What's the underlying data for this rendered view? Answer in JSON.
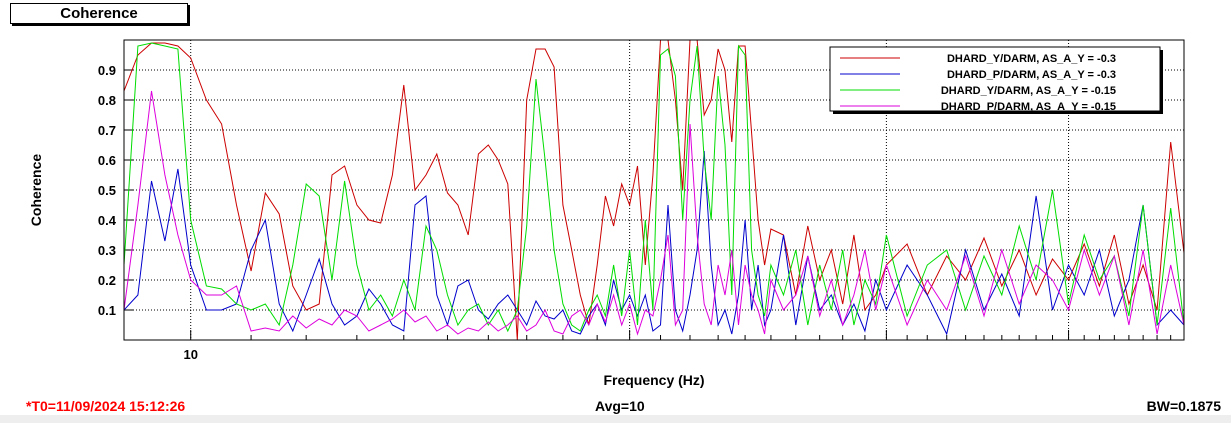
{
  "window": {
    "title_tab": "Coherence",
    "t0": "*T0=11/09/2024 15:12:26",
    "avg": "Avg=10",
    "bw": "BW=0.1875"
  },
  "colors": {
    "red": "#cc0000",
    "blue": "#0000cc",
    "green": "#00dd00",
    "magenta": "#dd00dd",
    "footer_red": "#ff0000"
  },
  "chart_data": {
    "type": "line",
    "title": "",
    "xlabel": "Frequency (Hz)",
    "ylabel": "Coherence",
    "xscale": "log",
    "xlim": [
      9.0,
      48.0
    ],
    "ylim": [
      0.0,
      1.0
    ],
    "yticks": [
      0.1,
      0.2,
      0.3,
      0.4,
      0.5,
      0.6,
      0.7,
      0.8,
      0.9
    ],
    "xtick_labels": [
      {
        "value": 10,
        "label": "10"
      }
    ],
    "grid": true,
    "legend_position": "top-right",
    "series": [
      {
        "name": "DHARD_Y/DARM, AS_A_Y = -0.3",
        "color": "#cc0000",
        "x": [
          9.0,
          9.2,
          9.4,
          9.6,
          9.8,
          10.0,
          10.25,
          10.5,
          10.75,
          11.0,
          11.25,
          11.5,
          11.75,
          12.0,
          12.25,
          12.5,
          12.75,
          13.0,
          13.25,
          13.5,
          13.75,
          14.0,
          14.25,
          14.5,
          14.75,
          15.0,
          15.25,
          15.5,
          15.75,
          16.0,
          16.25,
          16.5,
          16.75,
          17.0,
          17.25,
          17.5,
          17.75,
          18.0,
          18.25,
          18.5,
          18.75,
          19.0,
          19.25,
          19.5,
          19.75,
          20.0,
          20.25,
          20.5,
          20.75,
          21.0,
          21.25,
          21.5,
          21.75,
          22.0,
          22.25,
          22.5,
          22.75,
          23.0,
          23.25,
          23.5,
          23.75,
          24.0,
          24.25,
          24.5,
          24.75,
          25.0,
          25.5,
          26.0,
          26.5,
          27.0,
          27.5,
          28.0,
          28.5,
          29.0,
          29.5,
          30.0,
          31.0,
          32.0,
          33.0,
          34.0,
          35.0,
          36.0,
          37.0,
          38.0,
          39.0,
          40.0,
          41.0,
          42.0,
          43.0,
          44.0,
          45.0,
          46.0,
          47.0,
          48.0
        ],
        "y": [
          0.83,
          0.95,
          0.99,
          0.99,
          0.98,
          0.94,
          0.8,
          0.72,
          0.45,
          0.23,
          0.49,
          0.42,
          0.18,
          0.1,
          0.12,
          0.55,
          0.58,
          0.45,
          0.4,
          0.39,
          0.55,
          0.85,
          0.5,
          0.55,
          0.62,
          0.49,
          0.45,
          0.35,
          0.62,
          0.65,
          0.6,
          0.52,
          0.0,
          0.8,
          0.97,
          0.97,
          0.91,
          0.45,
          0.3,
          0.15,
          0.05,
          0.25,
          0.48,
          0.38,
          0.52,
          0.45,
          0.58,
          0.25,
          0.55,
          1.0,
          1.0,
          0.8,
          0.5,
          1.0,
          1.0,
          0.75,
          0.8,
          0.97,
          0.9,
          0.66,
          0.98,
          0.98,
          0.69,
          0.4,
          0.25,
          0.37,
          0.35,
          0.15,
          0.38,
          0.2,
          0.3,
          0.12,
          0.35,
          0.1,
          0.15,
          0.25,
          0.32,
          0.15,
          0.28,
          0.2,
          0.34,
          0.18,
          0.3,
          0.15,
          0.27,
          0.2,
          0.32,
          0.18,
          0.35,
          0.12,
          0.25,
          0.1,
          0.66,
          0.29
        ]
      },
      {
        "name": "DHARD_P/DARM, AS_A_Y = -0.3",
        "color": "#0000cc",
        "x": [
          9.0,
          9.2,
          9.4,
          9.6,
          9.8,
          10.0,
          10.25,
          10.5,
          10.75,
          11.0,
          11.25,
          11.5,
          11.75,
          12.0,
          12.25,
          12.5,
          12.75,
          13.0,
          13.25,
          13.5,
          13.75,
          14.0,
          14.25,
          14.5,
          14.75,
          15.0,
          15.25,
          15.5,
          15.75,
          16.0,
          16.25,
          16.5,
          16.75,
          17.0,
          17.25,
          17.5,
          17.75,
          18.0,
          18.25,
          18.5,
          18.75,
          19.0,
          19.25,
          19.5,
          19.75,
          20.0,
          20.25,
          20.5,
          20.75,
          21.0,
          21.25,
          21.5,
          21.75,
          22.0,
          22.25,
          22.5,
          22.75,
          23.0,
          23.25,
          23.5,
          23.75,
          24.0,
          24.25,
          24.5,
          24.75,
          25.0,
          25.5,
          26.0,
          26.5,
          27.0,
          27.5,
          28.0,
          28.5,
          29.0,
          29.5,
          30.0,
          31.0,
          32.0,
          33.0,
          34.0,
          35.0,
          36.0,
          37.0,
          38.0,
          39.0,
          40.0,
          41.0,
          42.0,
          43.0,
          44.0,
          45.0,
          46.0,
          47.0,
          48.0
        ],
        "y": [
          0.1,
          0.15,
          0.53,
          0.33,
          0.57,
          0.25,
          0.1,
          0.1,
          0.12,
          0.3,
          0.4,
          0.12,
          0.03,
          0.15,
          0.27,
          0.12,
          0.05,
          0.08,
          0.17,
          0.12,
          0.05,
          0.03,
          0.45,
          0.48,
          0.15,
          0.05,
          0.18,
          0.2,
          0.1,
          0.07,
          0.12,
          0.15,
          0.1,
          0.05,
          0.13,
          0.08,
          0.07,
          0.1,
          0.03,
          0.02,
          0.08,
          0.12,
          0.05,
          0.2,
          0.1,
          0.15,
          0.08,
          0.15,
          0.03,
          0.05,
          0.45,
          0.1,
          0.03,
          0.15,
          0.3,
          0.63,
          0.25,
          0.05,
          0.1,
          0.02,
          0.15,
          0.4,
          0.1,
          0.25,
          0.05,
          0.1,
          0.35,
          0.05,
          0.28,
          0.1,
          0.15,
          0.05,
          0.12,
          0.03,
          0.2,
          0.1,
          0.25,
          0.15,
          0.02,
          0.3,
          0.1,
          0.22,
          0.08,
          0.48,
          0.1,
          0.25,
          0.15,
          0.3,
          0.08,
          0.2,
          0.45,
          0.05,
          0.1,
          0.05
        ]
      },
      {
        "name": "DHARD_Y/DARM, AS_A_Y = -0.15",
        "color": "#00dd00",
        "x": [
          9.0,
          9.2,
          9.4,
          9.6,
          9.8,
          10.0,
          10.25,
          10.5,
          10.75,
          11.0,
          11.25,
          11.5,
          11.75,
          12.0,
          12.25,
          12.5,
          12.75,
          13.0,
          13.25,
          13.5,
          13.75,
          14.0,
          14.25,
          14.5,
          14.75,
          15.0,
          15.25,
          15.5,
          15.75,
          16.0,
          16.25,
          16.5,
          16.75,
          17.0,
          17.25,
          17.5,
          17.75,
          18.0,
          18.25,
          18.5,
          18.75,
          19.0,
          19.25,
          19.5,
          19.75,
          20.0,
          20.25,
          20.5,
          20.75,
          21.0,
          21.25,
          21.5,
          21.75,
          22.0,
          22.25,
          22.5,
          22.75,
          23.0,
          23.25,
          23.5,
          23.75,
          24.0,
          24.25,
          24.5,
          24.75,
          25.0,
          25.5,
          26.0,
          26.5,
          27.0,
          27.5,
          28.0,
          28.5,
          29.0,
          29.5,
          30.0,
          31.0,
          32.0,
          33.0,
          34.0,
          35.0,
          36.0,
          37.0,
          38.0,
          39.0,
          40.0,
          41.0,
          42.0,
          43.0,
          44.0,
          45.0,
          46.0,
          47.0,
          48.0
        ],
        "y": [
          0.25,
          0.98,
          0.99,
          0.98,
          0.97,
          0.4,
          0.18,
          0.17,
          0.12,
          0.1,
          0.12,
          0.05,
          0.25,
          0.52,
          0.48,
          0.2,
          0.53,
          0.25,
          0.1,
          0.15,
          0.08,
          0.2,
          0.1,
          0.38,
          0.3,
          0.15,
          0.05,
          0.1,
          0.12,
          0.05,
          0.1,
          0.03,
          0.1,
          0.38,
          0.87,
          0.6,
          0.3,
          0.12,
          0.05,
          0.03,
          0.1,
          0.15,
          0.08,
          0.25,
          0.08,
          0.3,
          0.05,
          0.4,
          0.1,
          0.95,
          0.97,
          0.88,
          0.4,
          0.8,
          0.98,
          0.6,
          0.4,
          0.88,
          0.65,
          0.15,
          0.98,
          0.95,
          0.3,
          0.15,
          0.08,
          0.25,
          0.15,
          0.3,
          0.05,
          0.25,
          0.1,
          0.3,
          0.05,
          0.2,
          0.12,
          0.35,
          0.08,
          0.25,
          0.3,
          0.1,
          0.28,
          0.15,
          0.38,
          0.2,
          0.5,
          0.12,
          0.35,
          0.2,
          0.28,
          0.08,
          0.45,
          0.05,
          0.44,
          0.05
        ]
      },
      {
        "name": "DHARD_P/DARM, AS_A_Y = -0.15",
        "color": "#dd00dd",
        "x": [
          9.0,
          9.2,
          9.4,
          9.6,
          9.8,
          10.0,
          10.25,
          10.5,
          10.75,
          11.0,
          11.25,
          11.5,
          11.75,
          12.0,
          12.25,
          12.5,
          12.75,
          13.0,
          13.25,
          13.5,
          13.75,
          14.0,
          14.25,
          14.5,
          14.75,
          15.0,
          15.25,
          15.5,
          15.75,
          16.0,
          16.25,
          16.5,
          16.75,
          17.0,
          17.25,
          17.5,
          17.75,
          18.0,
          18.25,
          18.5,
          18.75,
          19.0,
          19.25,
          19.5,
          19.75,
          20.0,
          20.25,
          20.5,
          20.75,
          21.0,
          21.25,
          21.5,
          21.75,
          22.0,
          22.25,
          22.5,
          22.75,
          23.0,
          23.25,
          23.5,
          23.75,
          24.0,
          24.25,
          24.5,
          24.75,
          25.0,
          25.5,
          26.0,
          26.5,
          27.0,
          27.5,
          28.0,
          28.5,
          29.0,
          29.5,
          30.0,
          31.0,
          32.0,
          33.0,
          34.0,
          35.0,
          36.0,
          37.0,
          38.0,
          39.0,
          40.0,
          41.0,
          42.0,
          43.0,
          44.0,
          45.0,
          46.0,
          47.0,
          48.0
        ],
        "y": [
          0.1,
          0.45,
          0.83,
          0.55,
          0.35,
          0.2,
          0.15,
          0.15,
          0.18,
          0.03,
          0.04,
          0.03,
          0.08,
          0.04,
          0.07,
          0.05,
          0.1,
          0.08,
          0.03,
          0.05,
          0.07,
          0.1,
          0.06,
          0.08,
          0.03,
          0.05,
          0.02,
          0.04,
          0.03,
          0.06,
          0.03,
          0.05,
          0.08,
          0.03,
          0.05,
          0.1,
          0.03,
          0.02,
          0.08,
          0.1,
          0.05,
          0.12,
          0.06,
          0.15,
          0.05,
          0.12,
          0.02,
          0.1,
          0.08,
          0.2,
          0.35,
          0.05,
          0.1,
          0.72,
          0.35,
          0.12,
          0.05,
          0.25,
          0.15,
          0.3,
          0.05,
          0.25,
          0.15,
          0.1,
          0.02,
          0.2,
          0.1,
          0.15,
          0.28,
          0.08,
          0.2,
          0.05,
          0.15,
          0.3,
          0.1,
          0.25,
          0.05,
          0.2,
          0.1,
          0.28,
          0.08,
          0.3,
          0.12,
          0.25,
          0.2,
          0.1,
          0.3,
          0.15,
          0.28,
          0.05,
          0.3,
          0.02,
          0.25,
          0.05
        ]
      }
    ]
  }
}
